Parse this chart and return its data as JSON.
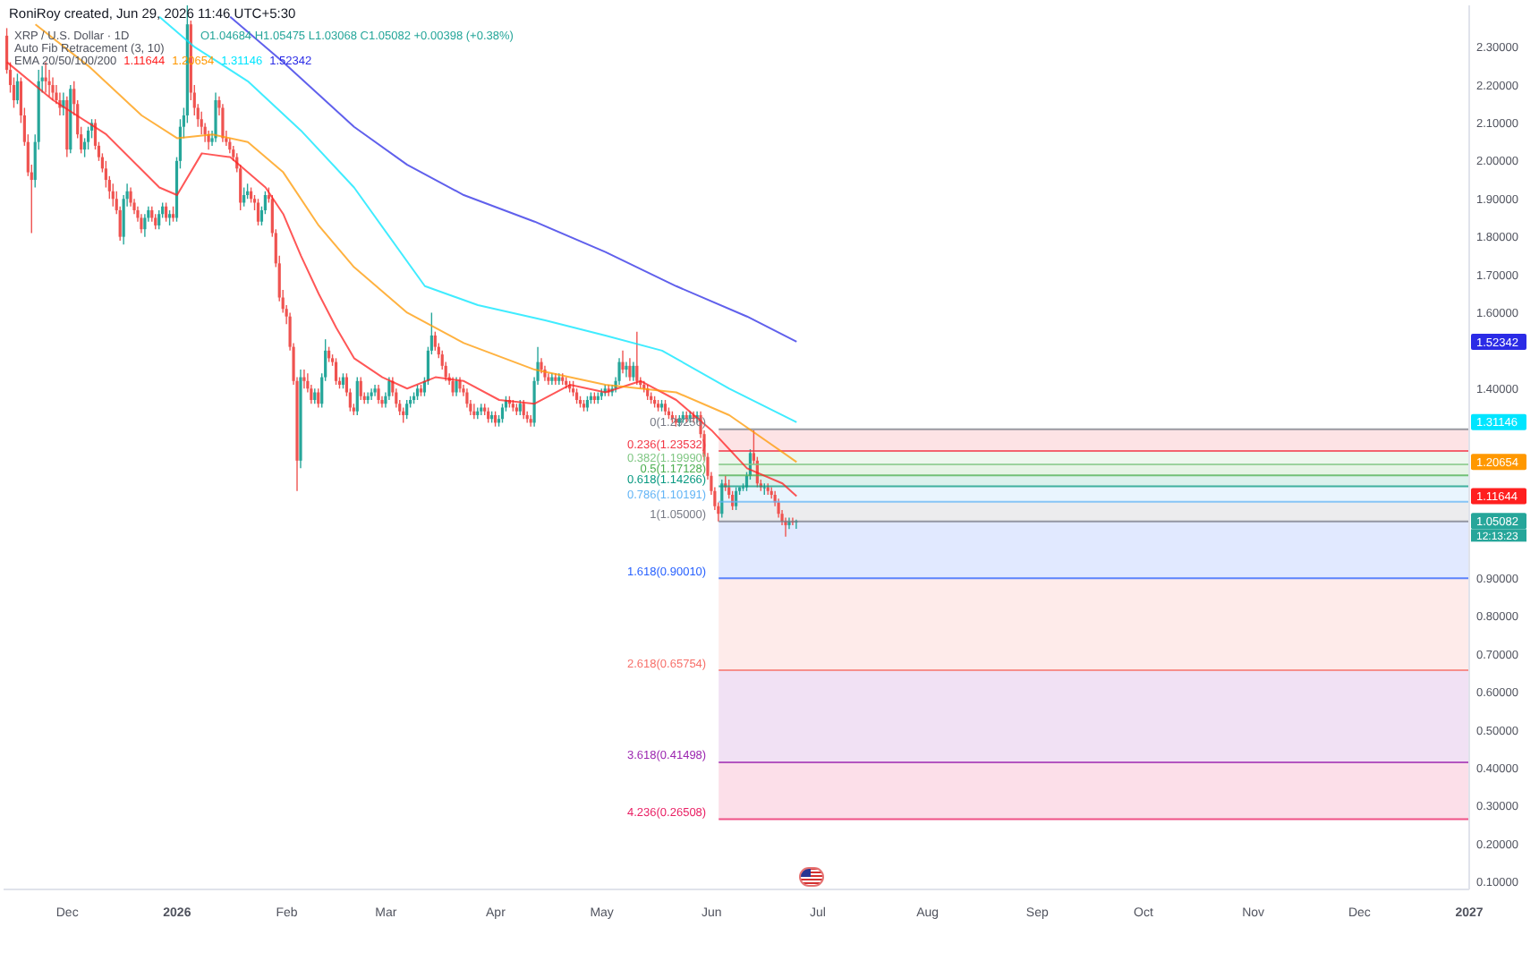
{
  "chart_data": {
    "type": "candlestick",
    "title": "XRP / U.S. Dollar · 1D",
    "subtitle": "Auto Fib Retracement (3, 10)",
    "legend_title": "EMA 20/50/100/200",
    "legend": "top left",
    "annotations": [
      "RoniRoy created, Jun 29, 2026 11:46 UTC+5:30",
      "O1.04684 H1.05475 L1.03068 C1.05082 +0.00398 (+0.38%)",
      "12:13:23"
    ],
    "xlim": [
      "2025-11-13",
      "2027-01-01"
    ],
    "xticks": [
      {
        "value": "2025-12-01",
        "label": "Dec"
      },
      {
        "value": "2026-01-01",
        "label": "2026"
      },
      {
        "value": "2026-02-01",
        "label": "Feb"
      },
      {
        "value": "2026-03-01",
        "label": "Mar"
      },
      {
        "value": "2026-04-01",
        "label": "Apr"
      },
      {
        "value": "2026-05-01",
        "label": "May"
      },
      {
        "value": "2026-06-01",
        "label": "Jun"
      },
      {
        "value": "2026-07-01",
        "label": "Jul"
      },
      {
        "value": "2026-08-01",
        "label": "Aug"
      },
      {
        "value": "2026-09-01",
        "label": "Sep"
      },
      {
        "value": "2026-10-01",
        "label": "Oct"
      },
      {
        "value": "2026-11-01",
        "label": "Nov"
      },
      {
        "value": "2026-12-01",
        "label": "Dec"
      },
      {
        "value": "2027-01-01",
        "label": "2027"
      }
    ],
    "ylim": [
      0.08,
      2.41
    ],
    "yticks": [
      {
        "value": 0.1,
        "label": "0.10000"
      },
      {
        "value": 0.2,
        "label": "0.20000"
      },
      {
        "value": 0.3,
        "label": "0.30000"
      },
      {
        "value": 0.4,
        "label": "0.40000"
      },
      {
        "value": 0.5,
        "label": "0.50000"
      },
      {
        "value": 0.6,
        "label": "0.60000"
      },
      {
        "value": 0.7,
        "label": "0.70000"
      },
      {
        "value": 0.8,
        "label": "0.80000"
      },
      {
        "value": 0.9,
        "label": "0.90000"
      },
      1.05082,
      1.11644,
      1.20654,
      1.31146,
      {
        "value": 1.4,
        "label": "1.40000"
      },
      1.52342,
      {
        "value": 1.6,
        "label": "1.60000"
      },
      {
        "value": 1.7,
        "label": "1.70000"
      },
      {
        "value": 1.8,
        "label": "1.80000"
      },
      {
        "value": 1.9,
        "label": "1.90000"
      },
      {
        "value": 2.0,
        "label": "2.00000"
      },
      {
        "value": 2.1,
        "label": "2.10000"
      },
      {
        "value": 2.2,
        "label": "2.20000"
      },
      {
        "value": 2.3,
        "label": "2.30000"
      }
    ],
    "x": [
      "2025-11-14",
      "2025-11-15",
      "2025-11-16",
      "2025-11-17",
      "2025-11-18",
      "2025-11-19",
      "2025-11-20",
      "2025-11-21",
      "2025-11-22",
      "2025-11-23",
      "2025-11-24",
      "2025-11-25",
      "2025-11-26",
      "2025-11-27",
      "2025-11-28",
      "2025-11-29",
      "2025-11-30",
      "2025-12-01",
      "2025-12-02",
      "2025-12-03",
      "2025-12-04",
      "2025-12-05",
      "2025-12-06",
      "2025-12-07",
      "2025-12-08",
      "2025-12-09",
      "2025-12-10",
      "2025-12-11",
      "2025-12-12",
      "2025-12-13",
      "2025-12-14",
      "2025-12-15",
      "2025-12-16",
      "2025-12-17",
      "2025-12-18",
      "2025-12-19",
      "2025-12-20",
      "2025-12-21",
      "2025-12-22",
      "2025-12-23",
      "2025-12-24",
      "2025-12-25",
      "2025-12-26",
      "2025-12-27",
      "2025-12-28",
      "2025-12-29",
      "2025-12-30",
      "2025-12-31",
      "2026-01-01",
      "2026-01-02",
      "2026-01-03",
      "2026-01-04",
      "2026-01-05",
      "2026-01-06",
      "2026-01-07",
      "2026-01-08",
      "2026-01-09",
      "2026-01-10",
      "2026-01-11",
      "2026-01-12",
      "2026-01-13",
      "2026-01-14",
      "2026-01-15",
      "2026-01-16",
      "2026-01-17",
      "2026-01-18",
      "2026-01-19",
      "2026-01-20",
      "2026-01-21",
      "2026-01-22",
      "2026-01-23",
      "2026-01-24",
      "2026-01-25",
      "2026-01-26",
      "2026-01-27",
      "2026-01-28",
      "2026-01-29",
      "2026-01-30",
      "2026-01-31",
      "2026-02-01",
      "2026-02-02",
      "2026-02-03",
      "2026-02-04",
      "2026-02-05",
      "2026-02-06",
      "2026-02-07",
      "2026-02-08",
      "2026-02-09",
      "2026-02-10",
      "2026-02-11",
      "2026-02-12",
      "2026-02-13",
      "2026-02-14",
      "2026-02-15",
      "2026-02-16",
      "2026-02-17",
      "2026-02-18",
      "2026-02-19",
      "2026-02-20",
      "2026-02-21",
      "2026-02-22",
      "2026-02-23",
      "2026-02-24",
      "2026-02-25",
      "2026-02-26",
      "2026-02-27",
      "2026-02-28",
      "2026-03-01",
      "2026-03-02",
      "2026-03-03",
      "2026-03-04",
      "2026-03-05",
      "2026-03-06",
      "2026-03-07",
      "2026-03-08",
      "2026-03-09",
      "2026-03-10",
      "2026-03-11",
      "2026-03-12",
      "2026-03-13",
      "2026-03-14",
      "2026-03-15",
      "2026-03-16",
      "2026-03-17",
      "2026-03-18",
      "2026-03-19",
      "2026-03-20",
      "2026-03-21",
      "2026-03-22",
      "2026-03-23",
      "2026-03-24",
      "2026-03-25",
      "2026-03-26",
      "2026-03-27",
      "2026-03-28",
      "2026-03-29",
      "2026-03-30",
      "2026-03-31",
      "2026-04-01",
      "2026-04-02",
      "2026-04-03",
      "2026-04-04",
      "2026-04-05",
      "2026-04-06",
      "2026-04-07",
      "2026-04-08",
      "2026-04-09",
      "2026-04-10",
      "2026-04-11",
      "2026-04-12",
      "2026-04-13",
      "2026-04-14",
      "2026-04-15",
      "2026-04-16",
      "2026-04-17",
      "2026-04-18",
      "2026-04-19",
      "2026-04-20",
      "2026-04-21",
      "2026-04-22",
      "2026-04-23",
      "2026-04-24",
      "2026-04-25",
      "2026-04-26",
      "2026-04-27",
      "2026-04-28",
      "2026-04-29",
      "2026-04-30",
      "2026-05-01",
      "2026-05-02",
      "2026-05-03",
      "2026-05-04",
      "2026-05-05",
      "2026-05-06",
      "2026-05-07",
      "2026-05-08",
      "2026-05-09",
      "2026-05-10",
      "2026-05-11",
      "2026-05-12",
      "2026-05-13",
      "2026-05-14",
      "2026-05-15",
      "2026-05-16",
      "2026-05-17",
      "2026-05-18",
      "2026-05-19",
      "2026-05-20",
      "2026-05-21",
      "2026-05-22",
      "2026-05-23",
      "2026-05-24",
      "2026-05-25",
      "2026-05-26",
      "2026-05-27",
      "2026-05-28",
      "2026-05-29",
      "2026-05-30",
      "2026-05-31",
      "2026-06-01",
      "2026-06-02",
      "2026-06-03",
      "2026-06-04",
      "2026-06-05",
      "2026-06-06",
      "2026-06-07",
      "2026-06-08",
      "2026-06-09",
      "2026-06-10",
      "2026-06-11",
      "2026-06-12",
      "2026-06-13",
      "2026-06-14",
      "2026-06-15",
      "2026-06-16",
      "2026-06-17",
      "2026-06-18",
      "2026-06-19",
      "2026-06-20",
      "2026-06-21",
      "2026-06-22",
      "2026-06-23",
      "2026-06-24",
      "2026-06-25"
    ],
    "ohlc": [
      [
        2.33,
        2.35,
        2.23,
        2.24
      ],
      [
        2.24,
        2.26,
        2.18,
        2.2
      ],
      [
        2.2,
        2.22,
        2.14,
        2.16
      ],
      [
        2.16,
        2.23,
        2.15,
        2.21
      ],
      [
        2.21,
        2.22,
        2.1,
        2.12
      ],
      [
        2.12,
        2.14,
        2.04,
        2.05
      ],
      [
        2.05,
        2.07,
        1.96,
        1.97
      ],
      [
        1.97,
        1.99,
        1.81,
        1.95
      ],
      [
        1.95,
        2.07,
        1.93,
        2.05
      ],
      [
        2.05,
        2.24,
        2.03,
        2.21
      ],
      [
        2.21,
        2.25,
        2.18,
        2.22
      ],
      [
        2.22,
        2.26,
        2.18,
        2.21
      ],
      [
        2.21,
        2.24,
        2.17,
        2.2
      ],
      [
        2.2,
        2.22,
        2.16,
        2.18
      ],
      [
        2.18,
        2.2,
        2.15,
        2.16
      ],
      [
        2.16,
        2.18,
        2.12,
        2.14
      ],
      [
        2.14,
        2.18,
        2.12,
        2.16
      ],
      [
        2.16,
        2.17,
        2.01,
        2.03
      ],
      [
        2.03,
        2.2,
        2.02,
        2.19
      ],
      [
        2.19,
        2.21,
        2.12,
        2.15
      ],
      [
        2.15,
        2.16,
        2.06,
        2.07
      ],
      [
        2.07,
        2.09,
        2.02,
        2.03
      ],
      [
        2.03,
        2.06,
        2.01,
        2.05
      ],
      [
        2.05,
        2.09,
        2.03,
        2.08
      ],
      [
        2.08,
        2.11,
        2.06,
        2.1
      ],
      [
        2.1,
        2.11,
        2.03,
        2.04
      ],
      [
        2.04,
        2.05,
        2,
        2.01
      ],
      [
        2.01,
        2.02,
        1.97,
        1.98
      ],
      [
        1.98,
        2,
        1.93,
        1.95
      ],
      [
        1.95,
        1.96,
        1.9,
        1.92
      ],
      [
        1.92,
        1.94,
        1.88,
        1.9
      ],
      [
        1.9,
        1.92,
        1.86,
        1.87
      ],
      [
        1.87,
        1.88,
        1.79,
        1.8
      ],
      [
        1.8,
        1.91,
        1.78,
        1.9
      ],
      [
        1.9,
        1.94,
        1.88,
        1.92
      ],
      [
        1.92,
        1.93,
        1.88,
        1.89
      ],
      [
        1.89,
        1.9,
        1.86,
        1.87
      ],
      [
        1.87,
        1.88,
        1.84,
        1.85
      ],
      [
        1.85,
        1.86,
        1.81,
        1.82
      ],
      [
        1.82,
        1.86,
        1.8,
        1.85
      ],
      [
        1.85,
        1.88,
        1.84,
        1.87
      ],
      [
        1.87,
        1.88,
        1.84,
        1.85
      ],
      [
        1.85,
        1.86,
        1.82,
        1.83
      ],
      [
        1.83,
        1.87,
        1.82,
        1.86
      ],
      [
        1.86,
        1.89,
        1.85,
        1.88
      ],
      [
        1.88,
        1.89,
        1.84,
        1.85
      ],
      [
        1.85,
        1.87,
        1.83,
        1.86
      ],
      [
        1.86,
        1.88,
        1.84,
        1.85
      ],
      [
        1.85,
        2.01,
        1.84,
        2
      ],
      [
        2,
        2.11,
        1.98,
        2.09
      ],
      [
        2.09,
        2.14,
        2.06,
        2.12
      ],
      [
        2.12,
        2.41,
        2.1,
        2.36
      ],
      [
        2.36,
        2.37,
        2.16,
        2.18
      ],
      [
        2.18,
        2.2,
        2.12,
        2.14
      ],
      [
        2.14,
        2.15,
        2.09,
        2.11
      ],
      [
        2.11,
        2.13,
        2.07,
        2.09
      ],
      [
        2.09,
        2.1,
        2.05,
        2.07
      ],
      [
        2.07,
        2.08,
        2.03,
        2.05
      ],
      [
        2.05,
        2.08,
        2.04,
        2.06
      ],
      [
        2.06,
        2.18,
        2.05,
        2.16
      ],
      [
        2.16,
        2.17,
        2.12,
        2.14
      ],
      [
        2.14,
        2.15,
        2.05,
        2.06
      ],
      [
        2.06,
        2.08,
        2.04,
        2.05
      ],
      [
        2.05,
        2.06,
        2.02,
        2.03
      ],
      [
        2.03,
        2.04,
        2,
        2.01
      ],
      [
        2.01,
        2.02,
        1.97,
        1.98
      ],
      [
        1.98,
        1.99,
        1.87,
        1.89
      ],
      [
        1.89,
        1.93,
        1.88,
        1.91
      ],
      [
        1.91,
        1.94,
        1.9,
        1.92
      ],
      [
        1.92,
        1.93,
        1.89,
        1.9
      ],
      [
        1.9,
        1.91,
        1.87,
        1.89
      ],
      [
        1.89,
        1.9,
        1.83,
        1.84
      ],
      [
        1.84,
        1.88,
        1.83,
        1.87
      ],
      [
        1.87,
        1.92,
        1.86,
        1.91
      ],
      [
        1.91,
        1.93,
        1.89,
        1.9
      ],
      [
        1.9,
        1.91,
        1.8,
        1.81
      ],
      [
        1.81,
        1.82,
        1.72,
        1.73
      ],
      [
        1.73,
        1.75,
        1.63,
        1.64
      ],
      [
        1.64,
        1.66,
        1.6,
        1.61
      ],
      [
        1.61,
        1.62,
        1.57,
        1.59
      ],
      [
        1.59,
        1.6,
        1.5,
        1.51
      ],
      [
        1.51,
        1.52,
        1.41,
        1.42
      ],
      [
        1.42,
        1.43,
        1.13,
        1.21
      ],
      [
        1.21,
        1.45,
        1.19,
        1.43
      ],
      [
        1.43,
        1.45,
        1.4,
        1.42
      ],
      [
        1.42,
        1.44,
        1.39,
        1.4
      ],
      [
        1.4,
        1.41,
        1.36,
        1.37
      ],
      [
        1.37,
        1.4,
        1.36,
        1.39
      ],
      [
        1.39,
        1.4,
        1.35,
        1.36
      ],
      [
        1.36,
        1.44,
        1.35,
        1.43
      ],
      [
        1.43,
        1.53,
        1.42,
        1.5
      ],
      [
        1.5,
        1.51,
        1.47,
        1.48
      ],
      [
        1.48,
        1.49,
        1.46,
        1.47
      ],
      [
        1.47,
        1.48,
        1.41,
        1.42
      ],
      [
        1.42,
        1.43,
        1.4,
        1.41
      ],
      [
        1.41,
        1.44,
        1.4,
        1.43
      ],
      [
        1.43,
        1.44,
        1.38,
        1.39
      ],
      [
        1.39,
        1.4,
        1.34,
        1.35
      ],
      [
        1.35,
        1.36,
        1.33,
        1.34
      ],
      [
        1.34,
        1.43,
        1.33,
        1.42
      ],
      [
        1.42,
        1.43,
        1.37,
        1.38
      ],
      [
        1.38,
        1.39,
        1.36,
        1.37
      ],
      [
        1.37,
        1.39,
        1.36,
        1.38
      ],
      [
        1.38,
        1.4,
        1.37,
        1.39
      ],
      [
        1.39,
        1.41,
        1.38,
        1.4
      ],
      [
        1.4,
        1.41,
        1.36,
        1.37
      ],
      [
        1.37,
        1.38,
        1.35,
        1.36
      ],
      [
        1.36,
        1.39,
        1.35,
        1.38
      ],
      [
        1.38,
        1.43,
        1.37,
        1.42
      ],
      [
        1.42,
        1.43,
        1.38,
        1.39
      ],
      [
        1.39,
        1.4,
        1.35,
        1.36
      ],
      [
        1.36,
        1.37,
        1.33,
        1.34
      ],
      [
        1.34,
        1.35,
        1.31,
        1.33
      ],
      [
        1.33,
        1.37,
        1.32,
        1.36
      ],
      [
        1.36,
        1.38,
        1.35,
        1.37
      ],
      [
        1.37,
        1.39,
        1.36,
        1.38
      ],
      [
        1.38,
        1.41,
        1.37,
        1.4
      ],
      [
        1.4,
        1.41,
        1.38,
        1.39
      ],
      [
        1.39,
        1.43,
        1.38,
        1.42
      ],
      [
        1.42,
        1.51,
        1.41,
        1.5
      ],
      [
        1.5,
        1.6,
        1.49,
        1.54
      ],
      [
        1.54,
        1.55,
        1.5,
        1.51
      ],
      [
        1.51,
        1.52,
        1.48,
        1.49
      ],
      [
        1.49,
        1.5,
        1.45,
        1.46
      ],
      [
        1.46,
        1.47,
        1.42,
        1.43
      ],
      [
        1.43,
        1.44,
        1.41,
        1.42
      ],
      [
        1.42,
        1.43,
        1.38,
        1.39
      ],
      [
        1.39,
        1.43,
        1.38,
        1.42
      ],
      [
        1.42,
        1.43,
        1.39,
        1.4
      ],
      [
        1.4,
        1.41,
        1.38,
        1.39
      ],
      [
        1.39,
        1.4,
        1.35,
        1.36
      ],
      [
        1.36,
        1.37,
        1.33,
        1.34
      ],
      [
        1.34,
        1.36,
        1.32,
        1.33
      ],
      [
        1.33,
        1.35,
        1.32,
        1.34
      ],
      [
        1.34,
        1.36,
        1.33,
        1.35
      ],
      [
        1.35,
        1.36,
        1.33,
        1.34
      ],
      [
        1.34,
        1.35,
        1.31,
        1.32
      ],
      [
        1.32,
        1.34,
        1.31,
        1.33
      ],
      [
        1.33,
        1.34,
        1.3,
        1.31
      ],
      [
        1.31,
        1.33,
        1.3,
        1.32
      ],
      [
        1.32,
        1.36,
        1.31,
        1.35
      ],
      [
        1.35,
        1.38,
        1.34,
        1.37
      ],
      [
        1.37,
        1.38,
        1.35,
        1.36
      ],
      [
        1.36,
        1.37,
        1.34,
        1.35
      ],
      [
        1.35,
        1.36,
        1.33,
        1.34
      ],
      [
        1.34,
        1.37,
        1.33,
        1.36
      ],
      [
        1.36,
        1.37,
        1.32,
        1.33
      ],
      [
        1.33,
        1.34,
        1.31,
        1.32
      ],
      [
        1.32,
        1.33,
        1.3,
        1.31
      ],
      [
        1.31,
        1.43,
        1.3,
        1.42
      ],
      [
        1.42,
        1.51,
        1.41,
        1.47
      ],
      [
        1.47,
        1.48,
        1.44,
        1.45
      ],
      [
        1.45,
        1.46,
        1.42,
        1.43
      ],
      [
        1.43,
        1.44,
        1.41,
        1.42
      ],
      [
        1.42,
        1.44,
        1.41,
        1.43
      ],
      [
        1.43,
        1.44,
        1.41,
        1.42
      ],
      [
        1.42,
        1.44,
        1.41,
        1.43
      ],
      [
        1.43,
        1.44,
        1.41,
        1.42
      ],
      [
        1.42,
        1.43,
        1.4,
        1.41
      ],
      [
        1.41,
        1.42,
        1.39,
        1.4
      ],
      [
        1.4,
        1.42,
        1.38,
        1.39
      ],
      [
        1.39,
        1.4,
        1.36,
        1.37
      ],
      [
        1.37,
        1.38,
        1.35,
        1.36
      ],
      [
        1.36,
        1.37,
        1.34,
        1.35
      ],
      [
        1.35,
        1.38,
        1.34,
        1.37
      ],
      [
        1.37,
        1.39,
        1.36,
        1.38
      ],
      [
        1.38,
        1.39,
        1.36,
        1.37
      ],
      [
        1.37,
        1.39,
        1.36,
        1.38
      ],
      [
        1.38,
        1.4,
        1.37,
        1.39
      ],
      [
        1.39,
        1.41,
        1.38,
        1.4
      ],
      [
        1.4,
        1.41,
        1.38,
        1.39
      ],
      [
        1.39,
        1.41,
        1.38,
        1.4
      ],
      [
        1.4,
        1.43,
        1.39,
        1.42
      ],
      [
        1.42,
        1.48,
        1.41,
        1.47
      ],
      [
        1.47,
        1.5,
        1.44,
        1.45
      ],
      [
        1.45,
        1.47,
        1.43,
        1.46
      ],
      [
        1.46,
        1.48,
        1.42,
        1.43
      ],
      [
        1.43,
        1.47,
        1.42,
        1.46
      ],
      [
        1.46,
        1.55,
        1.41,
        1.42
      ],
      [
        1.42,
        1.43,
        1.4,
        1.41
      ],
      [
        1.41,
        1.42,
        1.39,
        1.4
      ],
      [
        1.4,
        1.41,
        1.37,
        1.38
      ],
      [
        1.38,
        1.39,
        1.36,
        1.37
      ],
      [
        1.37,
        1.38,
        1.35,
        1.36
      ],
      [
        1.36,
        1.37,
        1.34,
        1.35
      ],
      [
        1.35,
        1.37,
        1.34,
        1.36
      ],
      [
        1.36,
        1.37,
        1.33,
        1.34
      ],
      [
        1.34,
        1.35,
        1.32,
        1.33
      ],
      [
        1.33,
        1.34,
        1.31,
        1.32
      ],
      [
        1.32,
        1.33,
        1.3,
        1.31
      ],
      [
        1.31,
        1.33,
        1.3,
        1.32
      ],
      [
        1.32,
        1.34,
        1.31,
        1.33
      ],
      [
        1.33,
        1.34,
        1.31,
        1.32
      ],
      [
        1.32,
        1.34,
        1.31,
        1.33
      ],
      [
        1.33,
        1.34,
        1.31,
        1.32
      ],
      [
        1.32,
        1.34,
        1.31,
        1.33
      ],
      [
        1.33,
        1.34,
        1.27,
        1.28
      ],
      [
        1.28,
        1.29,
        1.21,
        1.22
      ],
      [
        1.22,
        1.23,
        1.16,
        1.17
      ],
      [
        1.17,
        1.18,
        1.12,
        1.13
      ],
      [
        1.13,
        1.14,
        1.08,
        1.09
      ],
      [
        1.09,
        1.1,
        1.05,
        1.07
      ],
      [
        1.07,
        1.16,
        1.06,
        1.15
      ],
      [
        1.15,
        1.17,
        1.13,
        1.14
      ],
      [
        1.14,
        1.16,
        1.11,
        1.12
      ],
      [
        1.12,
        1.13,
        1.08,
        1.09
      ],
      [
        1.09,
        1.14,
        1.08,
        1.13
      ],
      [
        1.13,
        1.14,
        1.12,
        1.14
      ],
      [
        1.14,
        1.15,
        1.13,
        1.14
      ],
      [
        1.14,
        1.18,
        1.13,
        1.17
      ],
      [
        1.17,
        1.24,
        1.16,
        1.23
      ],
      [
        1.23,
        1.29,
        1.2,
        1.21
      ],
      [
        1.21,
        1.22,
        1.14,
        1.15
      ],
      [
        1.15,
        1.16,
        1.13,
        1.14
      ],
      [
        1.14,
        1.15,
        1.12,
        1.14
      ],
      [
        1.14,
        1.15,
        1.12,
        1.13
      ],
      [
        1.13,
        1.14,
        1.11,
        1.12
      ],
      [
        1.12,
        1.13,
        1.09,
        1.1
      ],
      [
        1.1,
        1.11,
        1.06,
        1.07
      ],
      [
        1.07,
        1.08,
        1.04,
        1.05
      ],
      [
        1.05,
        1.06,
        1.01,
        1.04
      ],
      [
        1.04,
        1.06,
        1.03,
        1.05
      ],
      [
        1.05,
        1.06,
        1.04,
        1.04684
      ],
      [
        1.04684,
        1.05475,
        1.03068,
        1.05082
      ]
    ],
    "colors": [
      "#ef5350",
      "#ef5350",
      "#ef5350",
      "#26a69a",
      "#ef5350",
      "#ef5350",
      "#ef5350",
      "#ef5350",
      "#26a69a",
      "#26a69a",
      "#26a69a",
      "#ef5350",
      "#ef5350",
      "#ef5350",
      "#ef5350",
      "#ef5350",
      "#26a69a",
      "#ef5350",
      "#26a69a",
      "#ef5350",
      "#ef5350",
      "#ef5350",
      "#26a69a",
      "#26a69a",
      "#26a69a",
      "#ef5350",
      "#ef5350",
      "#ef5350",
      "#ef5350",
      "#ef5350",
      "#ef5350",
      "#ef5350",
      "#ef5350",
      "#26a69a",
      "#26a69a",
      "#ef5350",
      "#ef5350",
      "#ef5350",
      "#ef5350",
      "#26a69a",
      "#26a69a",
      "#ef5350",
      "#ef5350",
      "#26a69a",
      "#26a69a",
      "#ef5350",
      "#26a69a",
      "#ef5350",
      "#26a69a",
      "#26a69a",
      "#26a69a",
      "#26a69a",
      "#ef5350",
      "#ef5350",
      "#ef5350",
      "#ef5350",
      "#ef5350",
      "#ef5350",
      "#26a69a",
      "#26a69a",
      "#ef5350",
      "#ef5350",
      "#ef5350",
      "#ef5350",
      "#ef5350",
      "#ef5350",
      "#ef5350",
      "#26a69a",
      "#26a69a",
      "#ef5350",
      "#ef5350",
      "#ef5350",
      "#26a69a",
      "#26a69a",
      "#ef5350",
      "#ef5350",
      "#ef5350",
      "#ef5350",
      "#ef5350",
      "#ef5350",
      "#ef5350",
      "#ef5350",
      "#ef5350",
      "#26a69a",
      "#ef5350",
      "#ef5350",
      "#ef5350",
      "#26a69a",
      "#ef5350",
      "#26a69a",
      "#26a69a",
      "#ef5350",
      "#ef5350",
      "#ef5350",
      "#ef5350",
      "#26a69a",
      "#ef5350",
      "#ef5350",
      "#ef5350",
      "#26a69a",
      "#ef5350",
      "#ef5350",
      "#26a69a",
      "#26a69a",
      "#26a69a",
      "#ef5350",
      "#ef5350",
      "#26a69a",
      "#26a69a",
      "#ef5350",
      "#ef5350",
      "#ef5350",
      "#ef5350",
      "#26a69a",
      "#26a69a",
      "#26a69a",
      "#26a69a",
      "#ef5350",
      "#26a69a",
      "#26a69a",
      "#26a69a",
      "#ef5350",
      "#ef5350",
      "#ef5350",
      "#ef5350",
      "#ef5350",
      "#ef5350",
      "#26a69a",
      "#ef5350",
      "#ef5350",
      "#ef5350",
      "#ef5350",
      "#ef5350",
      "#26a69a",
      "#26a69a",
      "#ef5350",
      "#ef5350",
      "#26a69a",
      "#ef5350",
      "#26a69a",
      "#26a69a",
      "#26a69a",
      "#ef5350",
      "#ef5350",
      "#ef5350",
      "#26a69a",
      "#ef5350",
      "#ef5350",
      "#ef5350",
      "#26a69a",
      "#26a69a",
      "#ef5350",
      "#ef5350",
      "#ef5350",
      "#26a69a",
      "#ef5350",
      "#26a69a",
      "#ef5350",
      "#ef5350",
      "#ef5350",
      "#ef5350",
      "#ef5350",
      "#ef5350",
      "#ef5350",
      "#26a69a",
      "#26a69a",
      "#ef5350",
      "#26a69a",
      "#26a69a",
      "#26a69a",
      "#ef5350",
      "#26a69a",
      "#26a69a",
      "#26a69a",
      "#ef5350",
      "#26a69a",
      "#ef5350",
      "#26a69a",
      "#ef5350",
      "#ef5350",
      "#ef5350",
      "#ef5350",
      "#ef5350",
      "#ef5350",
      "#ef5350",
      "#26a69a",
      "#ef5350",
      "#ef5350",
      "#ef5350",
      "#ef5350",
      "#26a69a",
      "#26a69a",
      "#ef5350",
      "#26a69a",
      "#ef5350",
      "#26a69a",
      "#ef5350",
      "#ef5350",
      "#ef5350",
      "#ef5350",
      "#ef5350",
      "#ef5350",
      "#26a69a",
      "#ef5350",
      "#ef5350",
      "#ef5350",
      "#26a69a",
      "#26a69a",
      "#26a69a",
      "#26a69a",
      "#26a69a",
      "#ef5350",
      "#ef5350",
      "#ef5350",
      "#26a69a",
      "#ef5350",
      "#ef5350",
      "#ef5350",
      "#ef5350",
      "#ef5350",
      "#ef5350",
      "#26a69a",
      "#ef5350",
      "#26a69a"
    ],
    "series": [
      {
        "type": "line",
        "color": "#787b86",
        "x": [
          "2026-06-03",
          "2027-01-01"
        ],
        "values": [
          1.29256,
          1.29256
        ],
        "value_labels": [
          "0(1.29256)",
          null
        ]
      },
      {
        "type": "line",
        "color": "#f23645",
        "x": [
          "2026-06-03",
          "2027-01-01"
        ],
        "values": [
          1.23532,
          1.23532
        ],
        "lower": [
          1.23532,
          1.23532
        ],
        "upper": [
          1.29256,
          1.29256
        ],
        "value_labels": [
          "0.236(1.23532)",
          null
        ]
      },
      {
        "type": "line",
        "color": "#81c784",
        "x": [
          "2026-06-03",
          "2027-01-01"
        ],
        "values": [
          1.1999,
          1.1999
        ],
        "lower": [
          1.1999,
          1.1999
        ],
        "upper": [
          1.23532,
          1.23532
        ],
        "value_labels": [
          "0.382(1.19990)",
          null
        ]
      },
      {
        "type": "line",
        "color": "#4caf50",
        "x": [
          "2026-06-03",
          "2027-01-01"
        ],
        "values": [
          1.17128,
          1.17128
        ],
        "lower": [
          1.17128,
          1.17128
        ],
        "upper": [
          1.1999,
          1.1999
        ],
        "value_labels": [
          "0.5(1.17128)",
          null
        ]
      },
      {
        "type": "line",
        "color": "#089981",
        "x": [
          "2026-06-03",
          "2027-01-01"
        ],
        "values": [
          1.14266,
          1.14266
        ],
        "lower": [
          1.14266,
          1.14266
        ],
        "upper": [
          1.17128,
          1.17128
        ],
        "value_labels": [
          "0.618(1.14266)",
          null
        ]
      },
      {
        "type": "line",
        "color": "#64b5f6",
        "x": [
          "2026-06-03",
          "2027-01-01"
        ],
        "values": [
          1.10191,
          1.10191
        ],
        "lower": [
          1.10191,
          1.10191
        ],
        "upper": [
          1.14266,
          1.14266
        ],
        "value_labels": [
          "0.786(1.10191)",
          null
        ]
      },
      {
        "type": "line",
        "color": "#787b86",
        "x": [
          "2026-06-03",
          "2027-01-01"
        ],
        "values": [
          1.05,
          1.05
        ],
        "lower": [
          1.05,
          1.05
        ],
        "upper": [
          1.10191,
          1.10191
        ],
        "value_labels": [
          "1(1.05000)",
          null
        ]
      },
      {
        "type": "line",
        "color": "#2962ff",
        "x": [
          "2026-06-03",
          "2027-01-01"
        ],
        "values": [
          0.9001,
          0.9001
        ],
        "lower": [
          0.9001,
          0.9001
        ],
        "upper": [
          1.05,
          1.05
        ],
        "value_labels": [
          "1.618(0.90010)",
          null
        ]
      },
      {
        "type": "line",
        "color": "#f7706a",
        "x": [
          "2026-06-03",
          "2027-01-01"
        ],
        "values": [
          0.65754,
          0.65754
        ],
        "lower": [
          0.65754,
          0.65754
        ],
        "upper": [
          0.9001,
          0.9001
        ],
        "value_labels": [
          "2.618(0.65754)",
          null
        ]
      },
      {
        "type": "line",
        "color": "#9c27b0",
        "x": [
          "2026-06-03",
          "2027-01-01"
        ],
        "values": [
          0.41498,
          0.41498
        ],
        "lower": [
          0.41498,
          0.41498
        ],
        "upper": [
          0.65754,
          0.65754
        ],
        "value_labels": [
          "3.618(0.41498)",
          null
        ]
      },
      {
        "type": "line",
        "color": "#e91e63",
        "x": [
          "2026-06-03",
          "2027-01-01"
        ],
        "values": [
          0.26508,
          0.26508
        ],
        "lower": [
          0.26508,
          0.26508
        ],
        "upper": [
          0.41498,
          0.41498
        ],
        "value_labels": [
          "4.236(0.26508)",
          null
        ]
      },
      {
        "type": "line",
        "name": "1.11644",
        "color": "#ff1f1f",
        "x": [
          "2025-11-14",
          "2025-11-27",
          "2025-12-12",
          "2025-12-27",
          "2026-01-01",
          "2026-01-08",
          "2026-01-16",
          "2026-01-26",
          "2026-01-31",
          "2026-02-05",
          "2026-02-10",
          "2026-02-15",
          "2026-02-20",
          "2026-02-28",
          "2026-03-07",
          "2026-03-15",
          "2026-03-23",
          "2026-04-02",
          "2026-04-12",
          "2026-04-22",
          "2026-05-02",
          "2026-05-12",
          "2026-05-22",
          "2026-06-01",
          "2026-06-11",
          "2026-06-21",
          "2026-06-25"
        ],
        "values": [
          2.26,
          2.16,
          2.07,
          1.93,
          1.91,
          2.02,
          2.01,
          1.93,
          1.86,
          1.75,
          1.65,
          1.56,
          1.48,
          1.43,
          1.4,
          1.43,
          1.42,
          1.37,
          1.36,
          1.41,
          1.39,
          1.42,
          1.37,
          1.29,
          1.19,
          1.15,
          1.11644
        ]
      },
      {
        "type": "line",
        "name": "1.20654",
        "color": "#ff9800",
        "x": [
          "2025-11-22",
          "2025-12-07",
          "2025-12-22",
          "2026-01-01",
          "2026-01-11",
          "2026-01-21",
          "2026-01-31",
          "2026-02-10",
          "2026-02-20",
          "2026-03-07",
          "2026-03-23",
          "2026-04-12",
          "2026-05-02",
          "2026-05-22",
          "2026-06-06",
          "2026-06-25"
        ],
        "values": [
          2.36,
          2.25,
          2.12,
          2.06,
          2.07,
          2.05,
          1.97,
          1.83,
          1.72,
          1.6,
          1.52,
          1.45,
          1.41,
          1.39,
          1.33,
          1.20654
        ]
      },
      {
        "type": "line",
        "name": "1.31146",
        "color": "#00e5ff",
        "x": [
          "2025-12-27",
          "2026-01-06",
          "2026-01-21",
          "2026-02-05",
          "2026-02-20",
          "2026-03-12",
          "2026-03-27",
          "2026-04-15",
          "2026-05-02",
          "2026-05-18",
          "2026-06-06",
          "2026-06-25"
        ],
        "values": [
          2.38,
          2.3,
          2.21,
          2.08,
          1.93,
          1.67,
          1.62,
          1.58,
          1.54,
          1.5,
          1.4,
          1.31146
        ]
      },
      {
        "type": "line",
        "name": "1.52342",
        "color": "#2b2be6",
        "x": [
          "2026-01-16",
          "2026-01-31",
          "2026-02-20",
          "2026-03-07",
          "2026-03-23",
          "2026-04-12",
          "2026-05-02",
          "2026-05-22",
          "2026-06-11",
          "2026-06-25"
        ],
        "values": [
          2.38,
          2.26,
          2.09,
          1.99,
          1.91,
          1.84,
          1.76,
          1.67,
          1.59,
          1.52342
        ]
      }
    ]
  }
}
